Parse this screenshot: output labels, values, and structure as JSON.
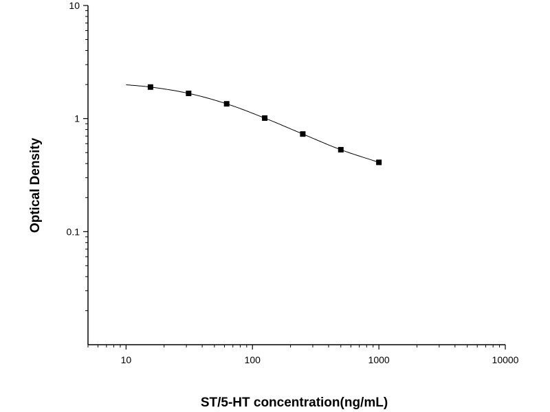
{
  "chart_data": {
    "type": "scatter",
    "title": "",
    "xlabel": "ST/5-HT concentration(ng/mL)",
    "ylabel": "Optical Density",
    "x_scale": "log",
    "y_scale": "log",
    "xlim": [
      5,
      10000
    ],
    "ylim": [
      0.01,
      10
    ],
    "grid": false,
    "x_ticks": [
      {
        "value": 10,
        "label": "10"
      },
      {
        "value": 100,
        "label": "100"
      },
      {
        "value": 1000,
        "label": "1000"
      },
      {
        "value": 10000,
        "label": "10000"
      }
    ],
    "y_ticks": [
      {
        "value": 0.1,
        "label": "0.1"
      },
      {
        "value": 1,
        "label": "1"
      },
      {
        "value": 10,
        "label": "10"
      }
    ],
    "points": {
      "x": [
        15.6,
        31.25,
        62.5,
        125,
        250,
        500,
        1000
      ],
      "y": [
        1.9,
        1.67,
        1.35,
        1.01,
        0.73,
        0.53,
        0.41
      ]
    },
    "fit_curve": {
      "x": [
        10,
        15.6,
        31.25,
        62.5,
        125,
        250,
        500,
        1000
      ],
      "y": [
        1.99,
        1.9,
        1.67,
        1.35,
        1.01,
        0.73,
        0.53,
        0.41
      ]
    },
    "marker": "square",
    "colors": {
      "points": "#000000",
      "line": "#000000",
      "axes": "#000000"
    }
  }
}
